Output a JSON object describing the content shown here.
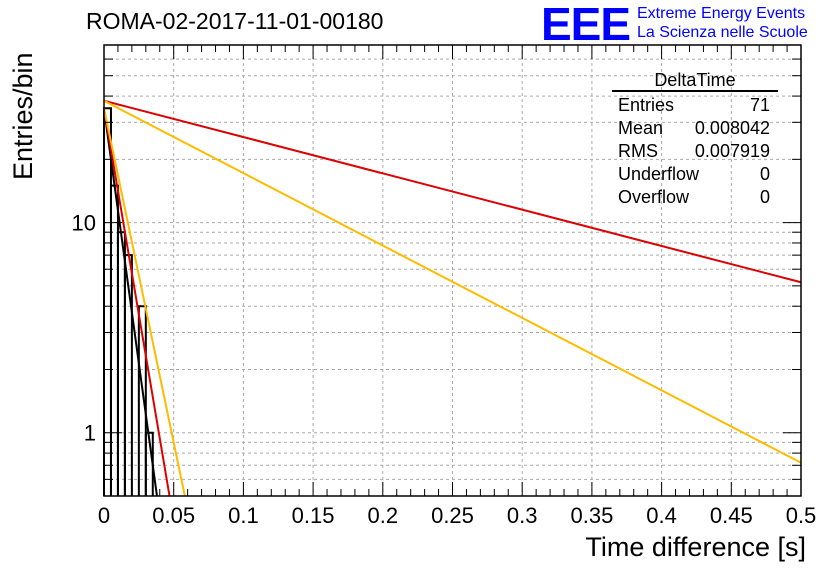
{
  "header": {
    "title": "ROMA-02-2017-11-01-00180",
    "logo_text": "EEE",
    "logo_line1": "Extreme Energy Events",
    "logo_line2": "La Scienza nelle Scuole",
    "logo_color": "#0000ff"
  },
  "stats_box": {
    "title": "DeltaTime",
    "rows": [
      {
        "label": "Entries",
        "value": "71"
      },
      {
        "label": "Mean",
        "value": "0.008042"
      },
      {
        "label": "RMS",
        "value": "0.007919"
      },
      {
        "label": "Underflow",
        "value": "0"
      },
      {
        "label": "Overflow",
        "value": "0"
      }
    ]
  },
  "chart_data": {
    "type": "line",
    "title": "ROMA-02-2017-11-01-00180",
    "xlabel": "Time difference [s]",
    "ylabel": "Entries/bin",
    "xlim": [
      0,
      0.5
    ],
    "ylim": [
      0.5,
      70
    ],
    "y_scale": "log",
    "grid": true,
    "x_ticks": [
      "0",
      "0.05",
      "0.1",
      "0.15",
      "0.2",
      "0.25",
      "0.3",
      "0.35",
      "0.4",
      "0.45",
      "0.5"
    ],
    "y_ticks": [
      "1",
      "10"
    ],
    "histogram": {
      "name": "DeltaTime",
      "bin_width": 0.005,
      "bins": [
        {
          "x0": 0.0,
          "count": 35
        },
        {
          "x0": 0.005,
          "count": 15
        },
        {
          "x0": 0.01,
          "count": 9
        },
        {
          "x0": 0.015,
          "count": 7
        },
        {
          "x0": 0.02,
          "count": 0
        },
        {
          "x0": 0.025,
          "count": 4
        },
        {
          "x0": 0.03,
          "count": 1
        },
        {
          "x0": 0.035,
          "count": 0
        }
      ],
      "color": "#000000"
    },
    "series": [
      {
        "x": [
          0.0,
          0.038
        ],
        "y": [
          35,
          0.5
        ],
        "color": "#000000"
      },
      {
        "x": [
          0.0,
          0.047
        ],
        "y": [
          35,
          0.5
        ],
        "color": "#dd0000"
      },
      {
        "x": [
          0.0,
          0.058
        ],
        "y": [
          35,
          0.5
        ],
        "color": "#ffbb00"
      },
      {
        "x": [
          0.0,
          0.5
        ],
        "y": [
          38,
          5.2
        ],
        "color": "#dd0000"
      },
      {
        "x": [
          0.0,
          0.5
        ],
        "y": [
          38,
          0.72
        ],
        "color": "#ffbb00"
      }
    ]
  }
}
